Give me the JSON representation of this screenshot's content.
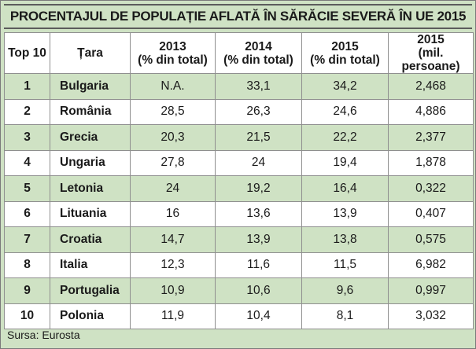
{
  "title": "PROCENTAJUL DE POPULAȚIE AFLATĂ ÎN SĂRĂCIE SEVERĂ ÎN UE 2015",
  "columns": [
    {
      "line1": "Top 10",
      "line2": ""
    },
    {
      "line1": "Țara",
      "line2": ""
    },
    {
      "line1": "2013",
      "line2": "(% din total)"
    },
    {
      "line1": "2014",
      "line2": "(% din total)"
    },
    {
      "line1": "2015",
      "line2": "(% din total)"
    },
    {
      "line1": "2015",
      "line2": "(mil. persoane)"
    }
  ],
  "rows": [
    {
      "rank": "1",
      "country": "Bulgaria",
      "y2013": "N.A.",
      "y2014": "33,1",
      "y2015": "34,2",
      "mil2015": "2,468"
    },
    {
      "rank": "2",
      "country": "România",
      "y2013": "28,5",
      "y2014": "26,3",
      "y2015": "24,6",
      "mil2015": "4,886"
    },
    {
      "rank": "3",
      "country": "Grecia",
      "y2013": "20,3",
      "y2014": "21,5",
      "y2015": "22,2",
      "mil2015": "2,377"
    },
    {
      "rank": "4",
      "country": "Ungaria",
      "y2013": "27,8",
      "y2014": "24",
      "y2015": "19,4",
      "mil2015": "1,878"
    },
    {
      "rank": "5",
      "country": "Letonia",
      "y2013": "24",
      "y2014": "19,2",
      "y2015": "16,4",
      "mil2015": "0,322"
    },
    {
      "rank": "6",
      "country": "Lituania",
      "y2013": "16",
      "y2014": "13,6",
      "y2015": "13,9",
      "mil2015": "0,407"
    },
    {
      "rank": "7",
      "country": "Croatia",
      "y2013": "14,7",
      "y2014": "13,9",
      "y2015": "13,8",
      "mil2015": "0,575"
    },
    {
      "rank": "8",
      "country": "Italia",
      "y2013": "12,3",
      "y2014": "11,6",
      "y2015": "11,5",
      "mil2015": "6,982"
    },
    {
      "rank": "9",
      "country": "Portugalia",
      "y2013": "10,9",
      "y2014": "10,6",
      "y2015": "9,6",
      "mil2015": "0,997"
    },
    {
      "rank": "10",
      "country": "Polonia",
      "y2013": "11,9",
      "y2014": "10,4",
      "y2015": "8,1",
      "mil2015": "3,032"
    }
  ],
  "source": "Sursa: Eurosta",
  "colors": {
    "band": "#cfe2c4",
    "white": "#ffffff",
    "border": "#8f8f8f"
  }
}
